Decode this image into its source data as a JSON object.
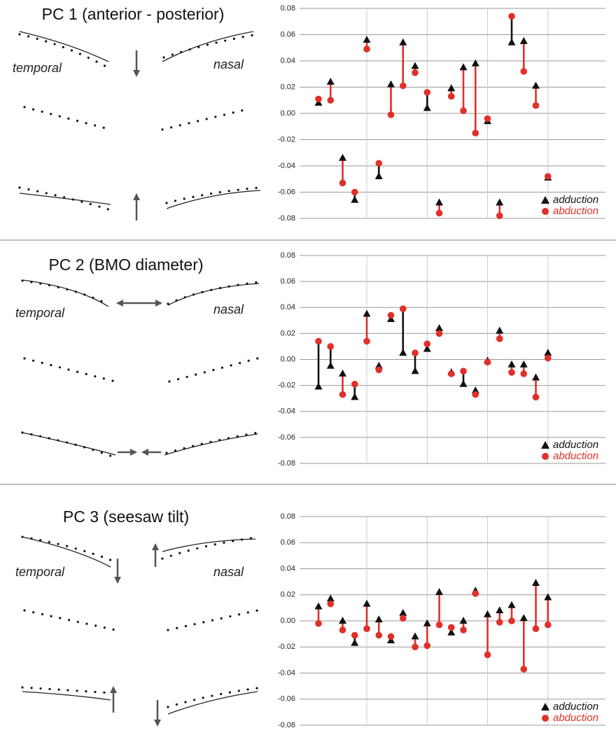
{
  "diagrams": [
    {
      "title": "PC 1 (anterior - posterior)",
      "left_label": "temporal",
      "right_label": "nasal"
    },
    {
      "title": "PC 2 (BMO diameter)",
      "left_label": "temporal",
      "right_label": "nasal"
    },
    {
      "title": "PC 3 (seesaw tilt)",
      "left_label": "temporal",
      "right_label": "nasal"
    }
  ],
  "chart_data": [
    {
      "type": "dumbbell",
      "categories": [
        null,
        null,
        null,
        null,
        null,
        null,
        null,
        null,
        null,
        null,
        null,
        null,
        null,
        null,
        null,
        null,
        null,
        null,
        null,
        null
      ],
      "series": [
        {
          "name": "adduction",
          "color": "#111111",
          "marker": "triangle",
          "values": [
            0.008,
            0.024,
            -0.034,
            -0.066,
            0.056,
            -0.048,
            0.022,
            0.054,
            0.036,
            0.004,
            -0.068,
            0.019,
            0.035,
            0.038,
            -0.006,
            -0.068,
            0.054,
            0.055,
            0.021,
            -0.049
          ]
        },
        {
          "name": "abduction",
          "color": "#e0302a",
          "marker": "circle",
          "values": [
            0.011,
            0.01,
            -0.053,
            -0.06,
            0.049,
            -0.038,
            -0.001,
            0.021,
            0.031,
            0.016,
            -0.076,
            0.013,
            0.002,
            -0.015,
            -0.004,
            -0.078,
            0.074,
            0.032,
            0.006,
            -0.048
          ]
        }
      ],
      "ylim": [
        -0.08,
        0.08
      ],
      "yticks": [
        {
          "value": -0.08,
          "label": "-0.08"
        },
        {
          "value": -0.06,
          "label": "-0.06"
        },
        {
          "value": -0.04,
          "label": "-0.04"
        },
        {
          "value": -0.02,
          "label": "-0.02"
        },
        {
          "value": 0,
          "label": "0.00"
        },
        {
          "value": 0.02,
          "label": "0.02"
        },
        {
          "value": 0.04,
          "label": "0.04"
        },
        {
          "value": 0.06,
          "label": "0.06"
        },
        {
          "value": 0.08,
          "label": "0.08"
        }
      ],
      "grid": true,
      "legend": "lower right"
    },
    {
      "type": "dumbbell",
      "categories": [
        null,
        null,
        null,
        null,
        null,
        null,
        null,
        null,
        null,
        null,
        null,
        null,
        null,
        null,
        null,
        null,
        null,
        null,
        null,
        null
      ],
      "series": [
        {
          "name": "adduction",
          "color": "#111111",
          "marker": "triangle",
          "values": [
            -0.021,
            -0.005,
            -0.011,
            -0.029,
            0.035,
            -0.005,
            0.031,
            0.005,
            -0.009,
            0.008,
            0.024,
            -0.01,
            -0.019,
            -0.024,
            -0.001,
            0.022,
            -0.004,
            -0.004,
            -0.014,
            0.005
          ]
        },
        {
          "name": "abduction",
          "color": "#e0302a",
          "marker": "circle",
          "values": [
            0.014,
            0.01,
            -0.027,
            -0.019,
            0.014,
            -0.008,
            0.034,
            0.039,
            0.005,
            0.012,
            0.02,
            -0.011,
            -0.009,
            -0.027,
            -0.002,
            0.016,
            -0.01,
            -0.011,
            -0.029,
            0.001
          ]
        }
      ],
      "ylim": [
        -0.08,
        0.08
      ],
      "yticks": [
        {
          "value": -0.08,
          "label": "-0.08"
        },
        {
          "value": -0.06,
          "label": "-0.06"
        },
        {
          "value": -0.04,
          "label": "-0.04"
        },
        {
          "value": -0.02,
          "label": "-0.02"
        },
        {
          "value": 0,
          "label": "0.00"
        },
        {
          "value": 0.02,
          "label": "0.02"
        },
        {
          "value": 0.04,
          "label": "0.04"
        },
        {
          "value": 0.06,
          "label": "0.06"
        },
        {
          "value": 0.08,
          "label": "0.08"
        }
      ],
      "grid": true,
      "legend": "lower right"
    },
    {
      "type": "dumbbell",
      "categories": [
        null,
        null,
        null,
        null,
        null,
        null,
        null,
        null,
        null,
        null,
        null,
        null,
        null,
        null,
        null,
        null,
        null,
        null,
        null,
        null
      ],
      "series": [
        {
          "name": "adduction",
          "color": "#111111",
          "marker": "triangle",
          "values": [
            0.011,
            0.017,
            0.0,
            -0.017,
            0.013,
            0.001,
            -0.015,
            0.006,
            -0.012,
            -0.002,
            0.022,
            -0.009,
            0.0,
            0.023,
            0.005,
            0.008,
            0.012,
            0.002,
            0.029,
            0.018
          ]
        },
        {
          "name": "abduction",
          "color": "#e0302a",
          "marker": "circle",
          "values": [
            -0.002,
            0.013,
            -0.007,
            -0.011,
            -0.006,
            -0.011,
            -0.012,
            0.002,
            -0.02,
            -0.019,
            -0.003,
            -0.005,
            -0.007,
            0.021,
            -0.026,
            -0.001,
            0.0,
            -0.037,
            -0.006,
            -0.003
          ]
        }
      ],
      "ylim": [
        -0.08,
        0.08
      ],
      "yticks": [
        {
          "value": -0.08,
          "label": "-0.08"
        },
        {
          "value": -0.06,
          "label": "-0.06"
        },
        {
          "value": -0.04,
          "label": "-0.04"
        },
        {
          "value": -0.02,
          "label": "-0.02"
        },
        {
          "value": 0,
          "label": "0.00"
        },
        {
          "value": 0.02,
          "label": "0.02"
        },
        {
          "value": 0.04,
          "label": "0.04"
        },
        {
          "value": 0.06,
          "label": "0.06"
        },
        {
          "value": 0.08,
          "label": "0.08"
        }
      ],
      "grid": true,
      "legend": "lower right"
    }
  ]
}
